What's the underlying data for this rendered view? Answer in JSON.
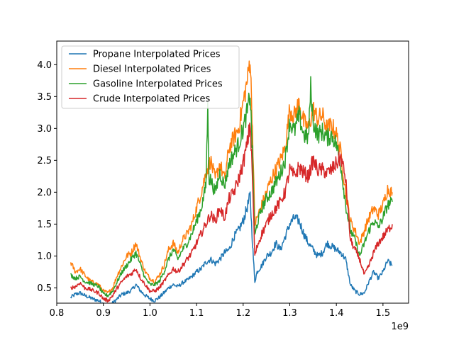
{
  "chart_data": {
    "type": "line",
    "title": "",
    "xlabel": "",
    "ylabel": "",
    "x_offset_label": "1e9",
    "xlim": [
      0.8,
      1.555
    ],
    "ylim": [
      0.26,
      4.37
    ],
    "x_ticks": [
      0.8,
      0.9,
      1.0,
      1.1,
      1.2,
      1.3,
      1.4,
      1.5
    ],
    "x_tick_labels": [
      "0.8",
      "0.9",
      "1.0",
      "1.1",
      "1.2",
      "1.3",
      "1.4",
      "1.5"
    ],
    "y_ticks": [
      0.5,
      1.0,
      1.5,
      2.0,
      2.5,
      3.0,
      3.5,
      4.0
    ],
    "y_tick_labels": [
      "0.5",
      "1.0",
      "1.5",
      "2.0",
      "2.5",
      "3.0",
      "3.5",
      "4.0"
    ],
    "grid": false,
    "legend_position": "upper-left",
    "series": [
      {
        "name": "Propane Interpolated Prices",
        "color": "#1f77b4",
        "x": [
          0.83,
          0.84,
          0.85,
          0.86,
          0.87,
          0.88,
          0.89,
          0.9,
          0.91,
          0.92,
          0.93,
          0.94,
          0.95,
          0.96,
          0.97,
          0.98,
          0.99,
          1.0,
          1.01,
          1.02,
          1.03,
          1.04,
          1.05,
          1.06,
          1.07,
          1.08,
          1.09,
          1.1,
          1.11,
          1.12,
          1.13,
          1.14,
          1.15,
          1.16,
          1.17,
          1.18,
          1.19,
          1.2,
          1.21,
          1.215,
          1.22,
          1.225,
          1.23,
          1.24,
          1.25,
          1.26,
          1.27,
          1.28,
          1.29,
          1.3,
          1.31,
          1.32,
          1.33,
          1.34,
          1.35,
          1.36,
          1.37,
          1.38,
          1.39,
          1.4,
          1.41,
          1.42,
          1.43,
          1.44,
          1.45,
          1.46,
          1.47,
          1.48,
          1.49,
          1.5,
          1.51,
          1.52
        ],
        "y": [
          0.35,
          0.4,
          0.42,
          0.38,
          0.35,
          0.32,
          0.3,
          0.25,
          0.22,
          0.26,
          0.33,
          0.4,
          0.42,
          0.46,
          0.55,
          0.45,
          0.38,
          0.33,
          0.3,
          0.35,
          0.42,
          0.5,
          0.55,
          0.52,
          0.58,
          0.62,
          0.68,
          0.75,
          0.8,
          0.9,
          0.95,
          0.88,
          0.95,
          1.05,
          1.1,
          1.3,
          1.4,
          1.55,
          1.8,
          1.95,
          1.2,
          0.6,
          0.75,
          0.85,
          1.0,
          1.05,
          1.2,
          1.1,
          1.3,
          1.5,
          1.6,
          1.55,
          1.35,
          1.2,
          1.1,
          1.0,
          1.05,
          1.2,
          1.15,
          1.1,
          1.05,
          0.95,
          0.55,
          0.45,
          0.4,
          0.42,
          0.6,
          0.75,
          0.65,
          0.75,
          0.92,
          0.85
        ]
      },
      {
        "name": "Diesel Interpolated Prices",
        "color": "#ff7f0e",
        "x": [
          0.83,
          0.84,
          0.85,
          0.86,
          0.87,
          0.88,
          0.89,
          0.9,
          0.91,
          0.92,
          0.93,
          0.94,
          0.95,
          0.96,
          0.97,
          0.98,
          0.99,
          1.0,
          1.01,
          1.02,
          1.03,
          1.04,
          1.05,
          1.06,
          1.07,
          1.08,
          1.09,
          1.1,
          1.11,
          1.12,
          1.13,
          1.14,
          1.15,
          1.16,
          1.17,
          1.18,
          1.19,
          1.2,
          1.21,
          1.215,
          1.22,
          1.225,
          1.23,
          1.24,
          1.25,
          1.26,
          1.27,
          1.28,
          1.29,
          1.3,
          1.31,
          1.32,
          1.33,
          1.34,
          1.35,
          1.36,
          1.37,
          1.38,
          1.39,
          1.4,
          1.41,
          1.42,
          1.43,
          1.44,
          1.45,
          1.46,
          1.47,
          1.48,
          1.49,
          1.5,
          1.51,
          1.52
        ],
        "y": [
          0.9,
          0.75,
          0.8,
          0.7,
          0.62,
          0.58,
          0.55,
          0.45,
          0.42,
          0.5,
          0.7,
          0.85,
          1.0,
          1.05,
          1.2,
          0.95,
          0.75,
          0.65,
          0.6,
          0.7,
          0.85,
          1.1,
          1.2,
          1.05,
          1.25,
          1.35,
          1.5,
          1.75,
          2.0,
          2.3,
          2.5,
          2.2,
          2.45,
          2.2,
          2.7,
          2.85,
          3.0,
          3.4,
          3.8,
          4.12,
          3.0,
          1.5,
          1.6,
          1.8,
          2.0,
          2.2,
          2.35,
          2.5,
          2.7,
          3.3,
          3.2,
          3.4,
          3.1,
          3.0,
          3.3,
          3.15,
          3.2,
          3.0,
          3.05,
          2.9,
          2.6,
          2.0,
          1.55,
          1.4,
          1.2,
          1.4,
          1.6,
          1.75,
          1.65,
          1.8,
          2.05,
          2.0
        ]
      },
      {
        "name": "Gasoline Interpolated Prices",
        "color": "#2ca02c",
        "x": [
          0.83,
          0.84,
          0.85,
          0.86,
          0.87,
          0.88,
          0.89,
          0.9,
          0.91,
          0.92,
          0.93,
          0.94,
          0.95,
          0.96,
          0.97,
          0.98,
          0.99,
          1.0,
          1.01,
          1.02,
          1.03,
          1.04,
          1.05,
          1.06,
          1.07,
          1.08,
          1.09,
          1.1,
          1.11,
          1.12,
          1.124,
          1.127,
          1.13,
          1.14,
          1.15,
          1.16,
          1.17,
          1.18,
          1.19,
          1.2,
          1.21,
          1.215,
          1.22,
          1.225,
          1.23,
          1.24,
          1.25,
          1.26,
          1.27,
          1.28,
          1.29,
          1.3,
          1.31,
          1.32,
          1.33,
          1.34,
          1.345,
          1.35,
          1.36,
          1.37,
          1.38,
          1.39,
          1.4,
          1.41,
          1.42,
          1.43,
          1.44,
          1.45,
          1.46,
          1.47,
          1.48,
          1.49,
          1.5,
          1.51,
          1.52
        ],
        "y": [
          0.7,
          0.65,
          0.68,
          0.6,
          0.58,
          0.55,
          0.52,
          0.4,
          0.38,
          0.45,
          0.6,
          0.75,
          0.85,
          0.95,
          1.05,
          0.85,
          0.65,
          0.55,
          0.55,
          0.6,
          0.75,
          0.95,
          1.1,
          0.95,
          1.1,
          1.2,
          1.35,
          1.55,
          1.75,
          2.1,
          3.3,
          2.2,
          2.2,
          2.0,
          2.3,
          2.1,
          2.45,
          2.6,
          2.75,
          3.0,
          3.3,
          3.55,
          2.6,
          1.3,
          1.5,
          1.75,
          1.9,
          2.0,
          2.15,
          2.3,
          2.5,
          3.1,
          2.95,
          3.2,
          2.9,
          2.85,
          3.65,
          3.1,
          2.9,
          2.95,
          2.85,
          2.9,
          2.75,
          2.4,
          1.8,
          1.4,
          1.25,
          1.0,
          1.2,
          1.4,
          1.55,
          1.45,
          1.6,
          1.8,
          1.85
        ]
      },
      {
        "name": "Crude Interpolated Prices",
        "color": "#d62728",
        "x": [
          0.83,
          0.84,
          0.85,
          0.86,
          0.87,
          0.88,
          0.89,
          0.9,
          0.91,
          0.92,
          0.93,
          0.94,
          0.95,
          0.96,
          0.97,
          0.98,
          0.99,
          1.0,
          1.01,
          1.02,
          1.03,
          1.04,
          1.05,
          1.06,
          1.07,
          1.08,
          1.09,
          1.1,
          1.11,
          1.12,
          1.13,
          1.14,
          1.15,
          1.16,
          1.17,
          1.18,
          1.19,
          1.2,
          1.21,
          1.215,
          1.22,
          1.225,
          1.23,
          1.24,
          1.25,
          1.26,
          1.27,
          1.28,
          1.29,
          1.3,
          1.31,
          1.32,
          1.33,
          1.34,
          1.35,
          1.36,
          1.37,
          1.38,
          1.39,
          1.4,
          1.41,
          1.42,
          1.43,
          1.44,
          1.45,
          1.46,
          1.47,
          1.48,
          1.49,
          1.5,
          1.51,
          1.52
        ],
        "y": [
          0.5,
          0.52,
          0.58,
          0.5,
          0.48,
          0.45,
          0.42,
          0.33,
          0.3,
          0.38,
          0.5,
          0.6,
          0.68,
          0.72,
          0.8,
          0.65,
          0.55,
          0.45,
          0.45,
          0.5,
          0.6,
          0.7,
          0.8,
          0.75,
          0.85,
          0.95,
          1.05,
          1.2,
          1.35,
          1.5,
          1.65,
          1.55,
          1.75,
          1.6,
          1.9,
          2.0,
          2.2,
          2.45,
          2.8,
          3.1,
          2.2,
          1.0,
          1.15,
          1.35,
          1.5,
          1.65,
          1.75,
          1.85,
          2.0,
          2.35,
          2.25,
          2.4,
          2.3,
          2.25,
          2.5,
          2.35,
          2.35,
          2.3,
          2.35,
          2.45,
          2.55,
          2.2,
          1.25,
          1.1,
          0.95,
          0.7,
          0.85,
          1.05,
          1.2,
          1.3,
          1.4,
          1.5
        ]
      }
    ]
  }
}
